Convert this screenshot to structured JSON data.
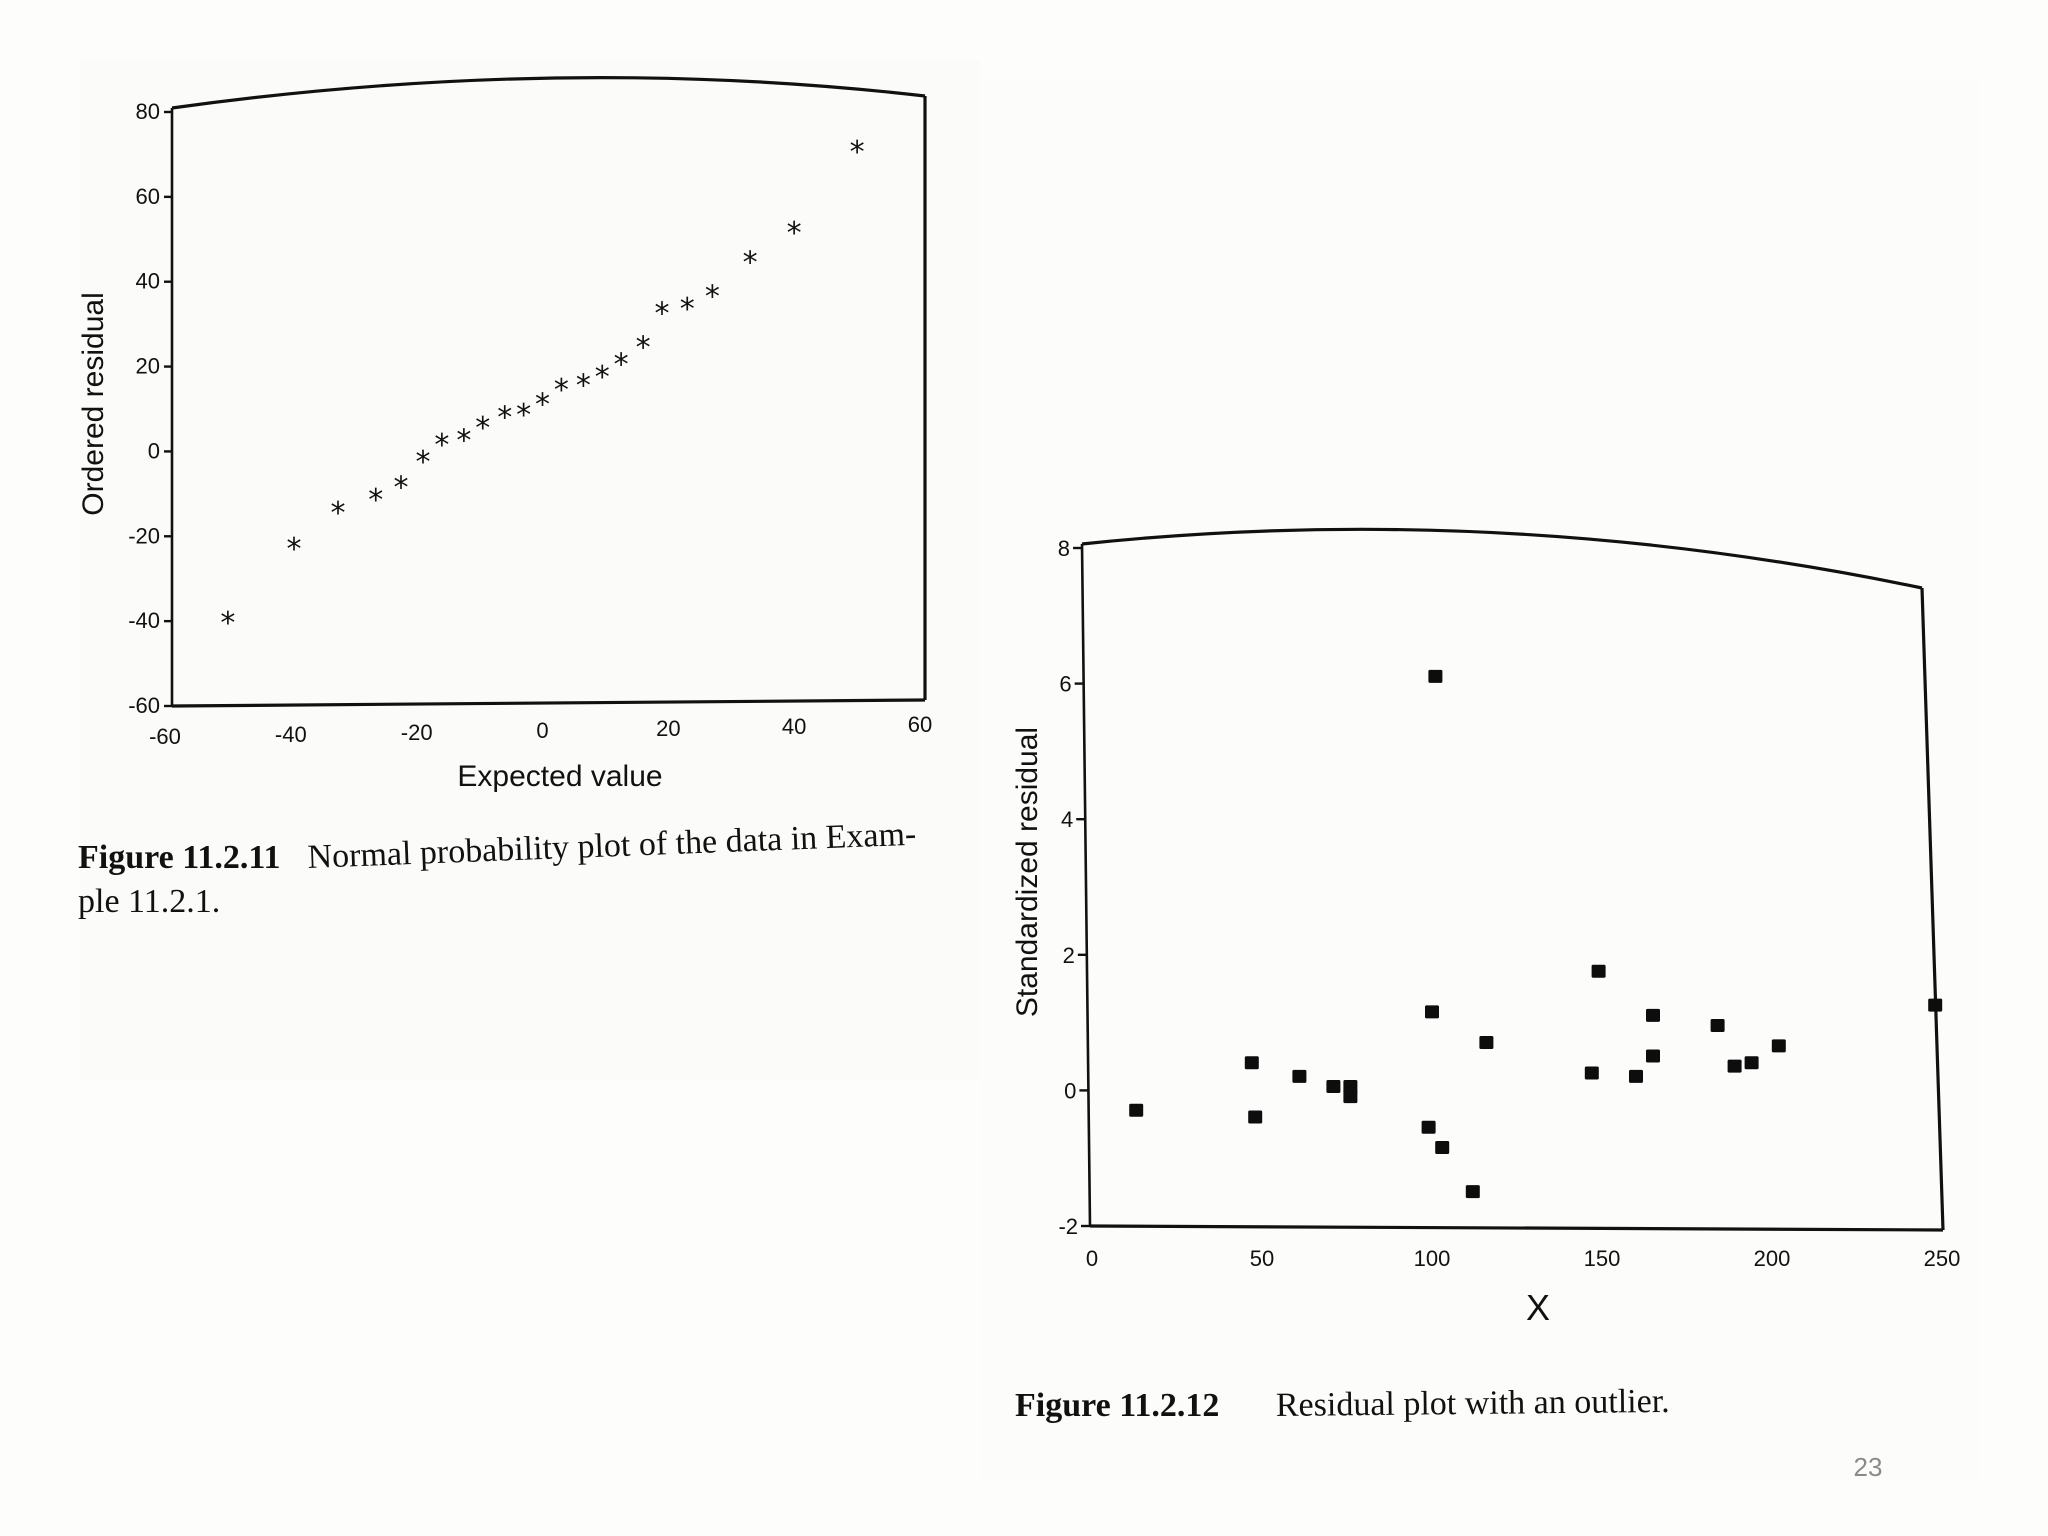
{
  "chart_data": [
    {
      "type": "scatter",
      "title": "",
      "xlabel": "Expected value",
      "ylabel": "Ordered residual",
      "xlim": [
        -60,
        60
      ],
      "ylim": [
        -60,
        80
      ],
      "x_ticks": [
        "-60",
        "-40",
        "-20",
        "0",
        "20",
        "40",
        "60"
      ],
      "y_ticks": [
        "80",
        "60",
        "40",
        "20",
        "0",
        "-20",
        "-40",
        "-60"
      ],
      "marker": "*",
      "points": [
        {
          "x": -50,
          "y": -40
        },
        {
          "x": -39.5,
          "y": -22.5
        },
        {
          "x": -32.5,
          "y": -14
        },
        {
          "x": -26.5,
          "y": -11
        },
        {
          "x": -22.5,
          "y": -8
        },
        {
          "x": -19,
          "y": -2
        },
        {
          "x": -16,
          "y": 2
        },
        {
          "x": -12.5,
          "y": 3
        },
        {
          "x": -9.5,
          "y": 6
        },
        {
          "x": -6,
          "y": 8.5
        },
        {
          "x": -3,
          "y": 9
        },
        {
          "x": 0,
          "y": 11.5
        },
        {
          "x": 3,
          "y": 15
        },
        {
          "x": 6.5,
          "y": 16
        },
        {
          "x": 9.5,
          "y": 18
        },
        {
          "x": 12.5,
          "y": 21
        },
        {
          "x": 16,
          "y": 25
        },
        {
          "x": 19,
          "y": 33
        },
        {
          "x": 23,
          "y": 34
        },
        {
          "x": 27,
          "y": 37
        },
        {
          "x": 33,
          "y": 45
        },
        {
          "x": 40,
          "y": 52
        },
        {
          "x": 50,
          "y": 71
        }
      ],
      "caption_label": "Figure 11.2.11",
      "caption_line1": "Normal probability plot of the data in Exam-",
      "caption_line2": "ple 11.2.1."
    },
    {
      "type": "scatter",
      "title": "",
      "xlabel": "X",
      "ylabel": "Standardized residual",
      "xlim": [
        0,
        250
      ],
      "ylim": [
        -2,
        8
      ],
      "x_ticks": [
        "0",
        "50",
        "100",
        "150",
        "200",
        "250"
      ],
      "y_ticks": [
        "8",
        "6",
        "4",
        "2",
        "0",
        "-2"
      ],
      "marker": "square",
      "points": [
        {
          "x": 13,
          "y": -0.3
        },
        {
          "x": 47,
          "y": 0.4
        },
        {
          "x": 48,
          "y": -0.4
        },
        {
          "x": 61,
          "y": 0.2
        },
        {
          "x": 71,
          "y": 0.05
        },
        {
          "x": 76,
          "y": 0.05
        },
        {
          "x": 76,
          "y": -0.1
        },
        {
          "x": 99,
          "y": -0.55
        },
        {
          "x": 100,
          "y": 1.15
        },
        {
          "x": 101,
          "y": 6.1
        },
        {
          "x": 103,
          "y": -0.85
        },
        {
          "x": 112,
          "y": -1.5
        },
        {
          "x": 116,
          "y": 0.7
        },
        {
          "x": 147,
          "y": 0.25
        },
        {
          "x": 149,
          "y": 1.75
        },
        {
          "x": 160,
          "y": 0.2
        },
        {
          "x": 165,
          "y": 1.1
        },
        {
          "x": 165,
          "y": 0.5
        },
        {
          "x": 184,
          "y": 0.95
        },
        {
          "x": 189,
          "y": 0.35
        },
        {
          "x": 194,
          "y": 0.4
        },
        {
          "x": 202,
          "y": 0.65
        },
        {
          "x": 248,
          "y": 1.25
        }
      ],
      "caption_label": "Figure 11.2.12",
      "caption_text": "Residual plot with an outlier."
    }
  ],
  "page_number": "23"
}
